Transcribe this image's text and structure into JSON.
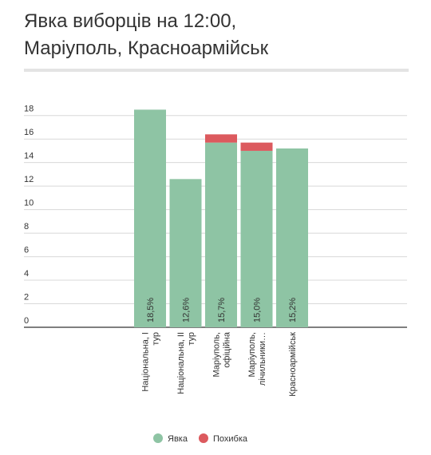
{
  "chart_data": {
    "type": "bar",
    "stacked": true,
    "title": "Явка виборців на 12:00, Маріуполь, Красноармійськ",
    "categories": [
      "Національна, I тур",
      "Національна, II тур",
      "Маріуполь, офіційна",
      "Маріуполь, лічильники…",
      "Красноармійськ"
    ],
    "series": [
      {
        "name": "Явка",
        "color": "#8ec4a4",
        "values": [
          18.5,
          12.6,
          15.7,
          15.0,
          15.2
        ],
        "value_labels": [
          "18,5%",
          "12,6%",
          "15,7%",
          "15,0%",
          "15,2%"
        ]
      },
      {
        "name": "Похибка",
        "color": "#dc5a5e",
        "values": [
          0,
          0,
          0.7,
          0.7,
          0
        ]
      }
    ],
    "ylim": [
      0,
      19
    ],
    "yticks": [
      0,
      2,
      4,
      6,
      8,
      10,
      12,
      14,
      16,
      18
    ],
    "grid": true,
    "legend": "bottom"
  }
}
